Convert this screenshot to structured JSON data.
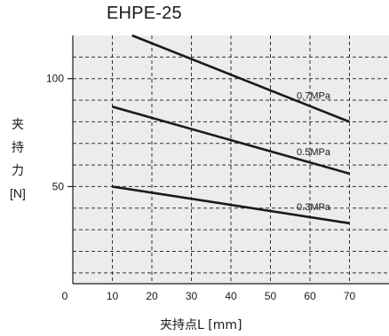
{
  "chart_data": {
    "type": "line",
    "title": "EHPE-25",
    "ylabel_chars": [
      "夹",
      "持",
      "力"
    ],
    "ylabel_unit": "[N]",
    "xlabel": "夹持点L [mm]",
    "xlim": [
      0,
      80
    ],
    "ylim": [
      5,
      120
    ],
    "x_ticks": [
      10,
      20,
      30,
      40,
      50,
      60,
      70
    ],
    "x_origin_label": "0",
    "y_ticks_labeled": [
      50,
      100
    ],
    "y_grid_values": [
      10,
      20,
      30,
      40,
      60,
      70,
      80,
      90,
      110
    ],
    "grid": true,
    "series": [
      {
        "name": "0.7MPa",
        "x": [
          15,
          70
        ],
        "y": [
          120,
          80
        ]
      },
      {
        "name": "0.5MPa",
        "x": [
          10,
          70
        ],
        "y": [
          87,
          56
        ]
      },
      {
        "name": "0.3MPa",
        "x": [
          10,
          70
        ],
        "y": [
          50,
          33
        ]
      }
    ],
    "line_color": "#1a1a1a"
  }
}
